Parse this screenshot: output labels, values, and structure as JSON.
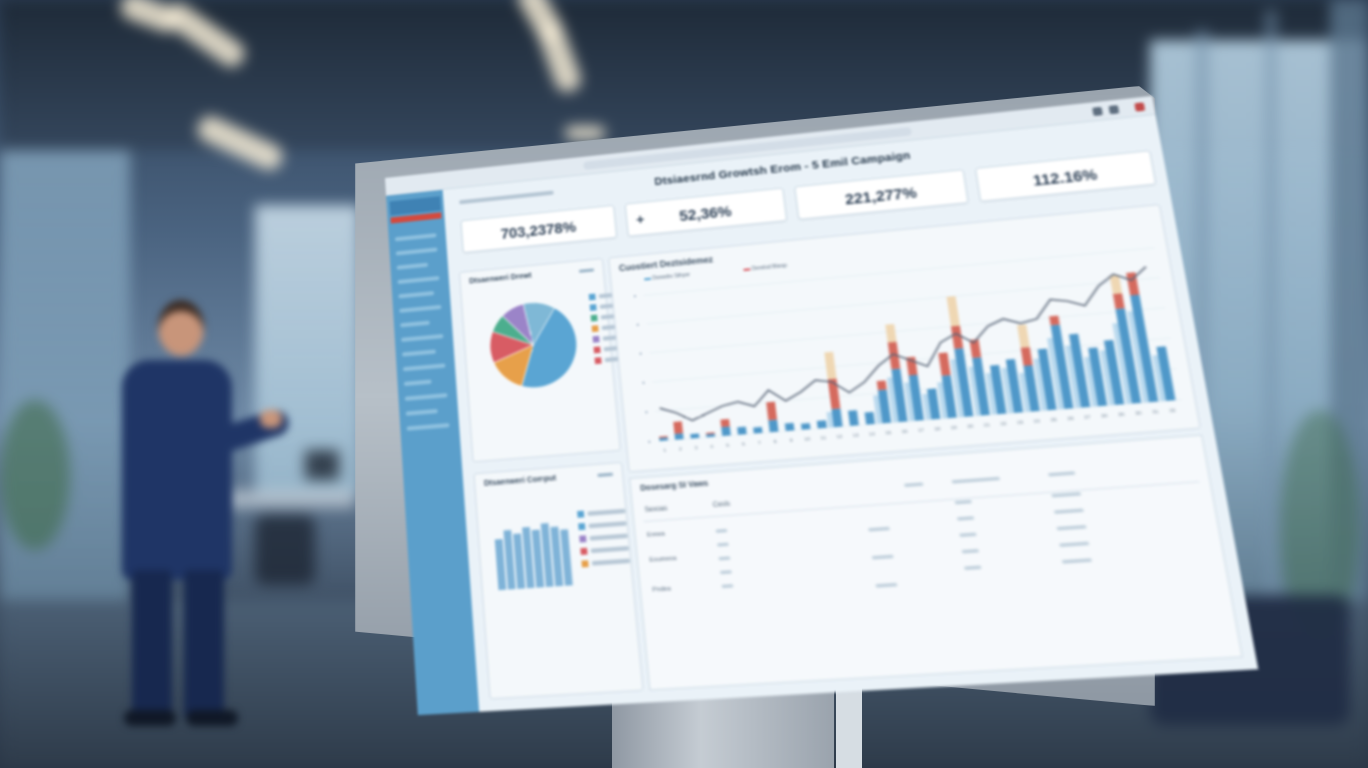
{
  "scene": {
    "description_colors": {
      "accent": "#5b9fcb",
      "alert": "#d44a3e",
      "suit": "#1f3566"
    }
  },
  "dashboard": {
    "title": "Dtsiaesrnd Growtsh Erom - 5 Emil Campaign",
    "kpis": [
      {
        "value": "703,2378%"
      },
      {
        "prefix": "+",
        "value": "52,36%"
      },
      {
        "value": "221,277%"
      },
      {
        "value": "112.16%"
      }
    ],
    "pie_panel": {
      "title": "Dtsaenweri Drewt",
      "slices": [
        {
          "color": "#5aa5d3",
          "value": 46
        },
        {
          "color": "#e7a04a",
          "value": 14
        },
        {
          "color": "#d85c64",
          "value": 12
        },
        {
          "color": "#4cae8e",
          "value": 7
        },
        {
          "color": "#9b84c8",
          "value": 9
        },
        {
          "color": "#7fb8d6",
          "value": 12
        }
      ],
      "legend_colors": [
        "#5aa5d3",
        "#5aa5d3",
        "#4cae8e",
        "#e7a04a",
        "#9b84c8",
        "#d85c64",
        "#d85c64"
      ]
    },
    "bar_panel": {
      "title": "Dtsaenweri Comput",
      "legend_colors": [
        "#5aa5d3",
        "#5aa5d3",
        "#9b84c8",
        "#d85c64",
        "#e7a04a"
      ],
      "bar_values": [
        60,
        70,
        65,
        72,
        68,
        75,
        70,
        66
      ]
    },
    "main_chart": {
      "title": "Cuostiert Deztsidemez",
      "legend": [
        "Dsnedrs Sthyer",
        "Derelsd Btesp"
      ]
    },
    "table": {
      "title": "Dosesarg SI Vaws",
      "headers": [
        "Sexoas",
        "Cesls"
      ],
      "rows": [
        "Erewa",
        "Eoumeoa",
        "Pndea"
      ]
    }
  },
  "chart_data": {
    "type": "bar",
    "categories": [
      "1",
      "2",
      "3",
      "4",
      "5",
      "6",
      "7",
      "8",
      "9",
      "10",
      "11",
      "12",
      "13",
      "14",
      "15",
      "16",
      "17",
      "18",
      "19",
      "20",
      "21",
      "22",
      "23",
      "24",
      "25",
      "26",
      "27",
      "28",
      "29",
      "30",
      "31",
      "32"
    ],
    "series": [
      {
        "values": [
          2,
          4,
          3,
          2,
          6,
          5,
          4,
          8,
          5,
          4,
          5,
          12,
          10,
          8,
          22,
          35,
          30,
          20,
          28,
          45,
          38,
          32,
          35,
          30,
          40,
          55,
          48,
          38,
          42,
          62,
          70,
          35
        ]
      },
      {
        "values": [
          1,
          8,
          0,
          1,
          5,
          0,
          0,
          12,
          0,
          0,
          0,
          20,
          0,
          0,
          6,
          18,
          12,
          0,
          15,
          15,
          12,
          0,
          0,
          12,
          0,
          6,
          0,
          0,
          0,
          10,
          15,
          0
        ]
      },
      {
        "values": [
          0,
          0,
          0,
          0,
          0,
          0,
          0,
          0,
          0,
          0,
          0,
          18,
          0,
          0,
          0,
          12,
          0,
          0,
          0,
          20,
          0,
          0,
          0,
          15,
          0,
          0,
          0,
          0,
          0,
          12,
          0,
          0
        ]
      },
      {
        "values": [
          22,
          18,
          12,
          16,
          20,
          22,
          18,
          28,
          20,
          25,
          32,
          30,
          22,
          28,
          38,
          45,
          40,
          35,
          50,
          55,
          48,
          58,
          62,
          58,
          60,
          72,
          70,
          66,
          78,
          85,
          80,
          88
        ]
      }
    ]
  }
}
